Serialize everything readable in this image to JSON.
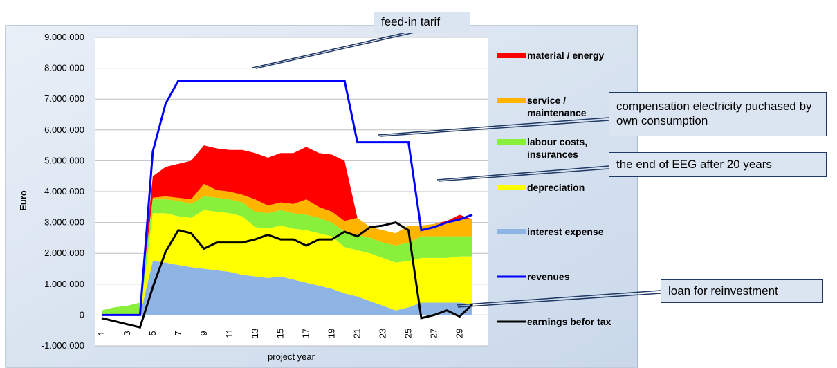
{
  "chart_data": {
    "type": "stacked_area_line",
    "x_label": "project year",
    "y_label": "Euro",
    "categories": [
      "1",
      null,
      "3",
      null,
      "5",
      null,
      "7",
      null,
      "9",
      null,
      "11",
      null,
      "13",
      null,
      "15",
      null,
      "17",
      null,
      "19",
      null,
      "21",
      null,
      "23",
      null,
      "25",
      null,
      "27",
      null,
      "29",
      null
    ],
    "ylim": [
      -1000000,
      9000000
    ],
    "yticks": [
      {
        "value": -1000000,
        "label": "-1.000.000"
      },
      0,
      {
        "value": 1000000,
        "label": "1.000.000"
      },
      {
        "value": 2000000,
        "label": "2.000.000"
      },
      {
        "value": 3000000,
        "label": "3.000.000"
      },
      {
        "value": 4000000,
        "label": "4.000.000"
      },
      {
        "value": 5000000,
        "label": "5.000.000"
      },
      {
        "value": 6000000,
        "label": "6.000.000"
      },
      {
        "value": 7000000,
        "label": "7.000.000"
      },
      {
        "value": 8000000,
        "label": "8.000.000"
      },
      {
        "value": 9000000,
        "label": "9.000.000"
      }
    ],
    "grid": true,
    "series": [
      {
        "name": "interest expense",
        "kind": "area",
        "color": "#8db4e2",
        "values": [
          0,
          0,
          0,
          0,
          1750000,
          1700000,
          1620000,
          1550000,
          1500000,
          1450000,
          1400000,
          1300000,
          1250000,
          1200000,
          1250000,
          1150000,
          1050000,
          950000,
          850000,
          700000,
          600000,
          450000,
          300000,
          150000,
          250000,
          400000,
          400000,
          400000,
          400000,
          350000
        ]
      },
      {
        "name": "depreciation",
        "kind": "area",
        "color": "#ffff00",
        "values": [
          0,
          0,
          0,
          0,
          1550000,
          1600000,
          1580000,
          1600000,
          1900000,
          1900000,
          1900000,
          1900000,
          1600000,
          1600000,
          1650000,
          1650000,
          1700000,
          1700000,
          1700000,
          1500000,
          1500000,
          1550000,
          1550000,
          1550000,
          1500000,
          1450000,
          1450000,
          1450000,
          1500000,
          1550000
        ]
      },
      {
        "name": "labour costs, insurances",
        "kind": "area",
        "color": "#88f03a",
        "values": [
          150000,
          250000,
          300000,
          400000,
          450000,
          450000,
          500000,
          450000,
          450000,
          450000,
          450000,
          450000,
          500000,
          500000,
          500000,
          500000,
          500000,
          500000,
          450000,
          500000,
          500000,
          500000,
          500000,
          550000,
          600000,
          700000,
          700000,
          700000,
          650000,
          650000
        ]
      },
      {
        "name": "service / maintenance",
        "kind": "area",
        "color": "#ffb400",
        "values": [
          0,
          0,
          0,
          0,
          50000,
          100000,
          100000,
          150000,
          400000,
          250000,
          250000,
          250000,
          400000,
          250000,
          250000,
          300000,
          500000,
          350000,
          350000,
          350000,
          550000,
          350000,
          400000,
          400000,
          550000,
          350000,
          400000,
          450000,
          550000,
          550000
        ]
      },
      {
        "name": "material / energy",
        "kind": "area",
        "color": "#ff0000",
        "values": [
          0,
          0,
          0,
          0,
          700000,
          950000,
          1100000,
          1250000,
          1250000,
          1350000,
          1350000,
          1450000,
          1500000,
          1550000,
          1600000,
          1650000,
          1700000,
          1750000,
          1850000,
          1950000,
          0,
          0,
          0,
          0,
          0,
          0,
          0,
          50000,
          150000,
          0
        ]
      },
      {
        "name": "revenues",
        "kind": "line",
        "color": "#0000ff",
        "values": [
          0,
          0,
          0,
          0,
          5300000,
          6850000,
          7600000,
          7600000,
          7600000,
          7600000,
          7600000,
          7600000,
          7600000,
          7600000,
          7600000,
          7600000,
          7600000,
          7600000,
          7600000,
          7600000,
          5600000,
          5600000,
          5600000,
          5600000,
          5600000,
          2750000,
          2850000,
          3000000,
          3100000,
          3250000
        ]
      },
      {
        "name": "earnings befor tax",
        "kind": "line",
        "color": "#000000",
        "values": [
          -100000,
          -200000,
          -300000,
          -400000,
          900000,
          2050000,
          2750000,
          2650000,
          2150000,
          2350000,
          2350000,
          2350000,
          2450000,
          2600000,
          2450000,
          2450000,
          2250000,
          2450000,
          2450000,
          2700000,
          2550000,
          2850000,
          2900000,
          3000000,
          2750000,
          -100000,
          0,
          150000,
          -50000,
          350000
        ]
      }
    ],
    "annotations": [
      "feed-in tarif",
      "compensation electricity puchased by own consumption",
      "the end of EEG after 20 years",
      "loan for reinvestment"
    ]
  }
}
